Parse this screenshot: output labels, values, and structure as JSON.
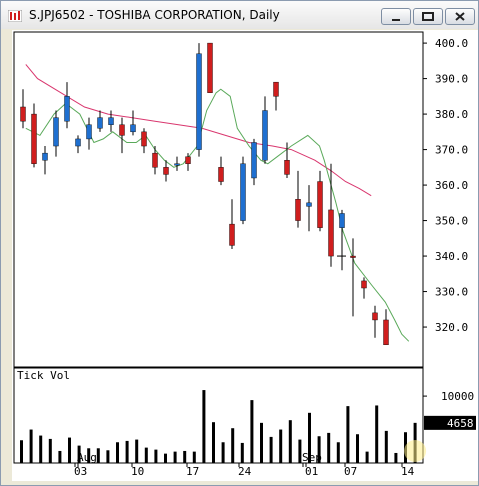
{
  "window": {
    "title": "S.JPJ6502 - TOSHIBA CORPORATION, Daily"
  },
  "icons": {
    "app": "chart-app-icon",
    "minimize": "minimize-icon",
    "maximize": "maximize-icon",
    "close": "close-icon"
  },
  "colors": {
    "up": "#1e6fd0",
    "down": "#d01e1e",
    "ma_fast": "#5aa95a",
    "ma_slow": "#d9366e",
    "volume": "#000000"
  },
  "chart_data": [
    {
      "type": "candlestick",
      "title": "",
      "ylim": [
        311,
        402
      ],
      "y_ticks": [
        "400.0",
        "390.0",
        "380.0",
        "370.0",
        "360.0",
        "350.0",
        "340.0",
        "330.0",
        "320.0"
      ],
      "x_tick_labels": [
        "Aug",
        "03",
        "10",
        "17",
        "24",
        "Sep",
        "01",
        "07",
        "14"
      ],
      "grid": false,
      "candles": [
        {
          "o": 382,
          "h": 387,
          "l": 376,
          "c": 378,
          "dir": "down"
        },
        {
          "o": 380,
          "h": 383,
          "l": 365,
          "c": 366,
          "dir": "down"
        },
        {
          "o": 367,
          "h": 371,
          "l": 363,
          "c": 369,
          "dir": "up"
        },
        {
          "o": 371,
          "h": 381,
          "l": 368,
          "c": 379,
          "dir": "up"
        },
        {
          "o": 378,
          "h": 389,
          "l": 376,
          "c": 385,
          "dir": "up"
        },
        {
          "o": 371,
          "h": 374,
          "l": 369,
          "c": 373,
          "dir": "up"
        },
        {
          "o": 373,
          "h": 379,
          "l": 370,
          "c": 377,
          "dir": "up"
        },
        {
          "o": 376,
          "h": 381,
          "l": 375,
          "c": 379,
          "dir": "up"
        },
        {
          "o": 377,
          "h": 381,
          "l": 375,
          "c": 379,
          "dir": "up"
        },
        {
          "o": 377,
          "h": 379,
          "l": 369,
          "c": 374,
          "dir": "down"
        },
        {
          "o": 375,
          "h": 381,
          "l": 374,
          "c": 377,
          "dir": "up"
        },
        {
          "o": 375,
          "h": 376,
          "l": 369,
          "c": 371,
          "dir": "down"
        },
        {
          "o": 369,
          "h": 371,
          "l": 363,
          "c": 365,
          "dir": "down"
        },
        {
          "o": 365,
          "h": 367,
          "l": 361,
          "c": 363,
          "dir": "down"
        },
        {
          "o": 366,
          "h": 368,
          "l": 364,
          "c": 366,
          "dir": "up"
        },
        {
          "o": 368,
          "h": 369,
          "l": 364,
          "c": 366,
          "dir": "down"
        },
        {
          "o": 370,
          "h": 400,
          "l": 368,
          "c": 397,
          "dir": "up"
        },
        {
          "o": 400,
          "h": 400,
          "l": 386,
          "c": 386,
          "dir": "down"
        },
        {
          "o": 365,
          "h": 368,
          "l": 360,
          "c": 361,
          "dir": "down"
        },
        {
          "o": 349,
          "h": 356,
          "l": 342,
          "c": 343,
          "dir": "down"
        },
        {
          "o": 350,
          "h": 368,
          "l": 349,
          "c": 366,
          "dir": "up"
        },
        {
          "o": 362,
          "h": 373,
          "l": 360,
          "c": 372,
          "dir": "up"
        },
        {
          "o": 367,
          "h": 385,
          "l": 366,
          "c": 381,
          "dir": "up"
        },
        {
          "o": 389,
          "h": 389,
          "l": 381,
          "c": 385,
          "dir": "down"
        },
        {
          "o": 367,
          "h": 372,
          "l": 362,
          "c": 363,
          "dir": "down"
        },
        {
          "o": 356,
          "h": 364,
          "l": 348,
          "c": 350,
          "dir": "down"
        },
        {
          "o": 354,
          "h": 360,
          "l": 347,
          "c": 355,
          "dir": "up"
        },
        {
          "o": 361,
          "h": 364,
          "l": 347,
          "c": 348,
          "dir": "down"
        },
        {
          "o": 353,
          "h": 366,
          "l": 337,
          "c": 340,
          "dir": "down"
        },
        {
          "o": 352,
          "h": 353,
          "l": 336,
          "c": 348,
          "dir": "up"
        },
        {
          "o": 340,
          "h": 345,
          "l": 323,
          "c": 340,
          "dir": "down"
        },
        {
          "o": 333,
          "h": 334,
          "l": 328,
          "c": 331,
          "dir": "down"
        },
        {
          "o": 324,
          "h": 326,
          "l": 317,
          "c": 322,
          "dir": "down"
        },
        {
          "o": 322,
          "h": 325,
          "l": 315,
          "c": 315,
          "dir": "down"
        }
      ],
      "ma_fast": [
        [
          5,
          376
        ],
        [
          11,
          374
        ],
        [
          17,
          380
        ],
        [
          22,
          383
        ],
        [
          28,
          380
        ],
        [
          34,
          372
        ],
        [
          38,
          373
        ],
        [
          42,
          375
        ],
        [
          48,
          372
        ],
        [
          52,
          372
        ],
        [
          56,
          374
        ],
        [
          60,
          370
        ],
        [
          64,
          367
        ],
        [
          68,
          365
        ],
        [
          72,
          366
        ],
        [
          78,
          371
        ],
        [
          82,
          381
        ],
        [
          86,
          386
        ],
        [
          88,
          387
        ],
        [
          92,
          385
        ],
        [
          95,
          376
        ],
        [
          100,
          371
        ],
        [
          105,
          367
        ],
        [
          108,
          366
        ],
        [
          112,
          368
        ],
        [
          118,
          371
        ],
        [
          125,
          374
        ],
        [
          130,
          371
        ],
        [
          132,
          367
        ],
        [
          137,
          355
        ],
        [
          140,
          347
        ],
        [
          145,
          338
        ],
        [
          152,
          332
        ],
        [
          158,
          327
        ],
        [
          162,
          322
        ],
        [
          165,
          318
        ],
        [
          168,
          316
        ]
      ],
      "ma_slow": [
        [
          5,
          394
        ],
        [
          10,
          390
        ],
        [
          20,
          386
        ],
        [
          30,
          382
        ],
        [
          40,
          380
        ],
        [
          50,
          379
        ],
        [
          60,
          378
        ],
        [
          70,
          377
        ],
        [
          80,
          376
        ],
        [
          90,
          374
        ],
        [
          100,
          372
        ],
        [
          110,
          371
        ],
        [
          118,
          370
        ],
        [
          128,
          367
        ],
        [
          135,
          364
        ],
        [
          141,
          361
        ],
        [
          147,
          359
        ],
        [
          152,
          357
        ]
      ],
      "last_price_marker": "—"
    },
    {
      "type": "bar",
      "ylabel": "Tick Vol",
      "ylim": [
        0,
        13900
      ],
      "y_ticks": [
        "10000"
      ],
      "last_value": "4658",
      "values": [
        3400,
        5000,
        4100,
        3600,
        1800,
        3800,
        2600,
        2200,
        2200,
        1900,
        3100,
        3300,
        3500,
        2300,
        2000,
        1400,
        1700,
        1800,
        1700,
        10900,
        6100,
        3100,
        5200,
        3000,
        9400,
        6000,
        3900,
        5000,
        6400,
        3500,
        7500,
        4000,
        4500,
        3100,
        8500,
        4300,
        1700,
        8600,
        4800,
        1500,
        4600,
        6000
      ]
    }
  ]
}
